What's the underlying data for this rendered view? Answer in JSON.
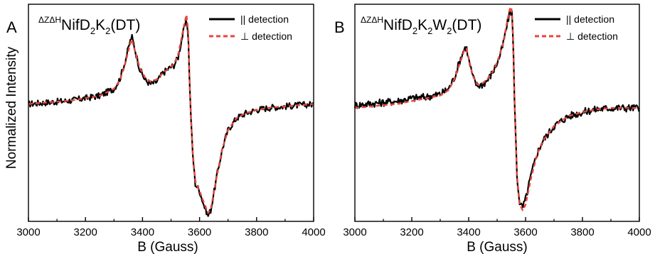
{
  "figure": {
    "ylabel": "Normalized Intensity"
  },
  "legend": {
    "par": "|| detection",
    "perp": "⊥ detection"
  },
  "colors": {
    "experiment": "#000000",
    "simulation": "#e8453c"
  },
  "chart_data": [
    {
      "type": "line",
      "panel": "A",
      "title": {
        "sup": "ΔZΔH",
        "main": "NifD",
        "sub1": "2",
        "k": "K",
        "sub2": "2",
        "tail": "(DT)"
      },
      "xlabel": "B (Gauss)",
      "ylabel": "Normalized Intensity",
      "xlim": [
        3000,
        4000
      ],
      "ylim": [
        -1.0,
        0.85
      ],
      "xticks": [
        "3000",
        "3200",
        "3400",
        "3600",
        "3800",
        "4000"
      ],
      "legend_position": "top-right",
      "series": [
        {
          "name": "|| detection",
          "style": "solid",
          "x": [
            3000,
            3050,
            3100,
            3150,
            3200,
            3250,
            3300,
            3320,
            3340,
            3355,
            3362,
            3375,
            3390,
            3410,
            3430,
            3450,
            3470,
            3490,
            3510,
            3525,
            3540,
            3550,
            3556,
            3560,
            3566,
            3575,
            3585,
            3600,
            3615,
            3630,
            3640,
            3660,
            3680,
            3700,
            3730,
            3760,
            3800,
            3850,
            3900,
            3950,
            4000
          ],
          "y": [
            0.0,
            0.01,
            0.02,
            0.03,
            0.05,
            0.07,
            0.13,
            0.21,
            0.37,
            0.52,
            0.58,
            0.45,
            0.3,
            0.2,
            0.17,
            0.19,
            0.26,
            0.3,
            0.33,
            0.4,
            0.58,
            0.68,
            0.7,
            0.6,
            0.1,
            -0.4,
            -0.68,
            -0.74,
            -0.86,
            -0.95,
            -0.9,
            -0.62,
            -0.38,
            -0.22,
            -0.12,
            -0.08,
            -0.05,
            -0.03,
            -0.02,
            -0.01,
            0.0
          ]
        },
        {
          "name": "⊥ detection",
          "style": "dashed",
          "x": [
            3000,
            3050,
            3100,
            3150,
            3200,
            3250,
            3300,
            3320,
            3340,
            3355,
            3362,
            3375,
            3390,
            3410,
            3430,
            3450,
            3470,
            3490,
            3510,
            3525,
            3540,
            3550,
            3554,
            3560,
            3566,
            3575,
            3585,
            3600,
            3615,
            3630,
            3640,
            3660,
            3680,
            3700,
            3730,
            3760,
            3800,
            3850,
            3900,
            3950,
            4000
          ],
          "y": [
            0.0,
            0.01,
            0.02,
            0.03,
            0.05,
            0.07,
            0.13,
            0.2,
            0.35,
            0.5,
            0.55,
            0.44,
            0.31,
            0.22,
            0.19,
            0.21,
            0.26,
            0.3,
            0.34,
            0.42,
            0.6,
            0.72,
            0.76,
            0.62,
            0.12,
            -0.38,
            -0.66,
            -0.74,
            -0.84,
            -0.93,
            -0.89,
            -0.62,
            -0.38,
            -0.22,
            -0.12,
            -0.08,
            -0.05,
            -0.03,
            -0.02,
            -0.01,
            0.0
          ]
        }
      ]
    },
    {
      "type": "line",
      "panel": "B",
      "title": {
        "sup": "ΔZΔH",
        "main": "NifD",
        "sub1": "2",
        "k": "K",
        "sub2": "2",
        "w": "W",
        "sub3": "2",
        "tail": "(DT)"
      },
      "xlabel": "B (Gauss)",
      "ylabel": "",
      "xlim": [
        3000,
        4000
      ],
      "ylim": [
        -0.82,
        0.75
      ],
      "xticks": [
        "3000",
        "3200",
        "3400",
        "3600",
        "3800",
        "4000"
      ],
      "legend_position": "top-right",
      "series": [
        {
          "name": "|| detection",
          "style": "solid",
          "x": [
            3000,
            3050,
            3100,
            3150,
            3200,
            3250,
            3300,
            3330,
            3350,
            3370,
            3385,
            3392,
            3400,
            3415,
            3430,
            3450,
            3470,
            3490,
            3505,
            3520,
            3535,
            3545,
            3552,
            3556,
            3562,
            3570,
            3580,
            3590,
            3600,
            3620,
            3640,
            3660,
            3700,
            3750,
            3800,
            3850,
            3900,
            3950,
            4000
          ],
          "y": [
            0.02,
            0.03,
            0.04,
            0.05,
            0.07,
            0.08,
            0.1,
            0.14,
            0.22,
            0.35,
            0.43,
            0.44,
            0.35,
            0.22,
            0.16,
            0.17,
            0.21,
            0.28,
            0.35,
            0.45,
            0.6,
            0.7,
            0.69,
            0.5,
            0.0,
            -0.5,
            -0.7,
            -0.72,
            -0.66,
            -0.48,
            -0.33,
            -0.24,
            -0.13,
            -0.06,
            -0.03,
            -0.01,
            0.0,
            0.0,
            0.0
          ]
        },
        {
          "name": "⊥ detection",
          "style": "dashed",
          "x": [
            3000,
            3050,
            3100,
            3150,
            3200,
            3250,
            3300,
            3330,
            3350,
            3370,
            3385,
            3392,
            3400,
            3415,
            3430,
            3450,
            3470,
            3490,
            3505,
            3520,
            3535,
            3545,
            3550,
            3556,
            3562,
            3570,
            3580,
            3590,
            3600,
            3620,
            3640,
            3660,
            3700,
            3750,
            3800,
            3850,
            3900,
            3950,
            4000
          ],
          "y": [
            0.0,
            0.01,
            0.02,
            0.03,
            0.05,
            0.07,
            0.09,
            0.13,
            0.21,
            0.33,
            0.42,
            0.43,
            0.36,
            0.23,
            0.17,
            0.18,
            0.22,
            0.28,
            0.36,
            0.46,
            0.62,
            0.72,
            0.73,
            0.52,
            0.0,
            -0.5,
            -0.7,
            -0.74,
            -0.7,
            -0.5,
            -0.34,
            -0.24,
            -0.13,
            -0.06,
            -0.03,
            -0.01,
            0.0,
            0.0,
            0.0
          ]
        }
      ]
    }
  ]
}
